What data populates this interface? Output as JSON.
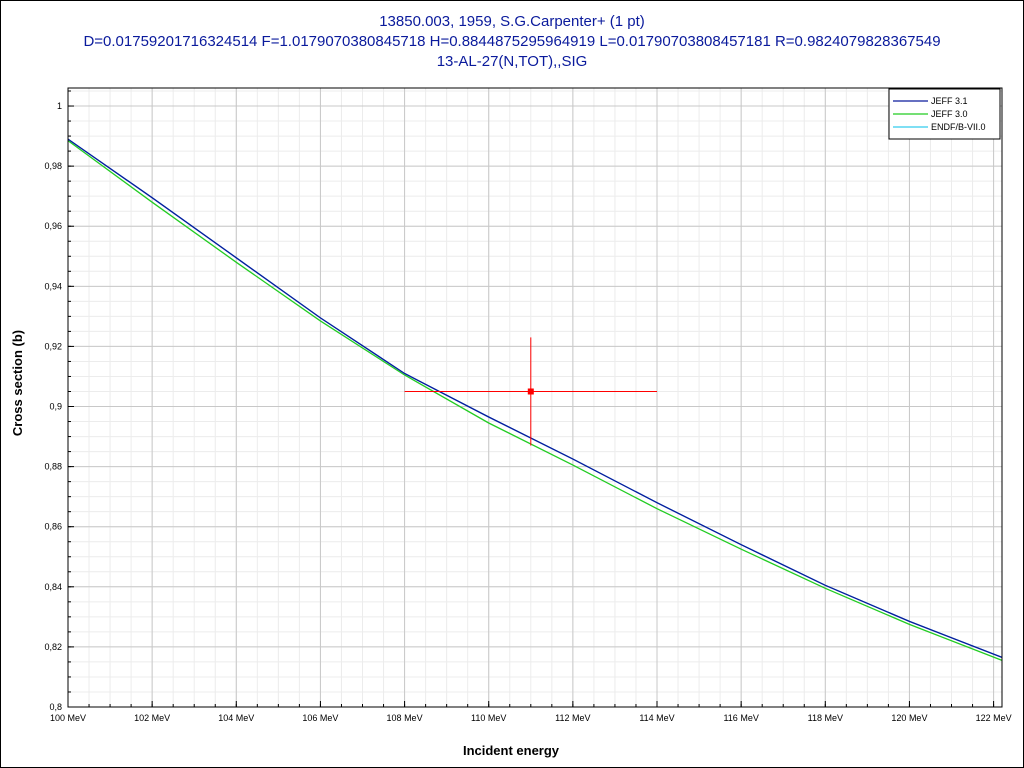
{
  "chart_data": {
    "type": "line",
    "title": "13850.003, 1959, S.G.Carpenter+ (1 pt)",
    "subtitle": "D=0.01759201716324514 F=1.0179070380845718 H=0.8844875295964919 L=0.01790703808457181 R=0.9824079828367549",
    "subtitle2": "13-AL-27(N,TOT),,SIG",
    "xlabel": "Incident energy",
    "ylabel": "Cross section (b)",
    "xlim": [
      100,
      122.2
    ],
    "ylim": [
      0.8,
      1.006
    ],
    "x_ticks": [
      100,
      102,
      104,
      106,
      108,
      110,
      112,
      114,
      116,
      118,
      120,
      122
    ],
    "x_tick_labels": [
      "100 MeV",
      "102 MeV",
      "104 MeV",
      "106 MeV",
      "108 MeV",
      "110 MeV",
      "112 MeV",
      "114 MeV",
      "116 MeV",
      "118 MeV",
      "120 MeV",
      "122 MeV"
    ],
    "y_ticks": [
      0.8,
      0.82,
      0.84,
      0.86,
      0.88,
      0.9,
      0.92,
      0.94,
      0.96,
      0.98,
      1.0
    ],
    "y_tick_labels": [
      "0,8",
      "0,82",
      "0,84",
      "0,86",
      "0,88",
      "0,9",
      "0,92",
      "0,94",
      "0,96",
      "0,98",
      "1"
    ],
    "grid": true,
    "legend_position": "top-right",
    "series": [
      {
        "name": "JEFF 3.1",
        "color": "#0a1a9c",
        "x": [
          100,
          102,
          104,
          106,
          108,
          110,
          112,
          114,
          116,
          118,
          120,
          122.2
        ],
        "y": [
          0.989,
          0.9695,
          0.9495,
          0.9295,
          0.911,
          0.8965,
          0.8825,
          0.868,
          0.854,
          0.8405,
          0.8285,
          0.8165
        ]
      },
      {
        "name": "JEFF 3.0",
        "color": "#22cc22",
        "x": [
          100,
          102,
          104,
          106,
          108,
          110,
          112,
          114,
          116,
          118,
          120,
          122.2
        ],
        "y": [
          0.9885,
          0.968,
          0.948,
          0.9285,
          0.9105,
          0.8945,
          0.8805,
          0.866,
          0.8525,
          0.8395,
          0.8275,
          0.8155
        ]
      },
      {
        "name": "ENDF/B-VII.0",
        "color": "#33ccee",
        "x": [
          100,
          102,
          104,
          106,
          108,
          110,
          112,
          114,
          116,
          118,
          120,
          122.2
        ],
        "y": [
          0.989,
          0.9695,
          0.9495,
          0.9295,
          0.911,
          0.8965,
          0.8825,
          0.868,
          0.854,
          0.8405,
          0.8285,
          0.8165
        ]
      }
    ],
    "experimental_point": {
      "x": 111,
      "y": 0.905,
      "x_err": [
        108,
        114
      ],
      "y_err": [
        0.887,
        0.923
      ],
      "color": "#ff0000"
    }
  }
}
